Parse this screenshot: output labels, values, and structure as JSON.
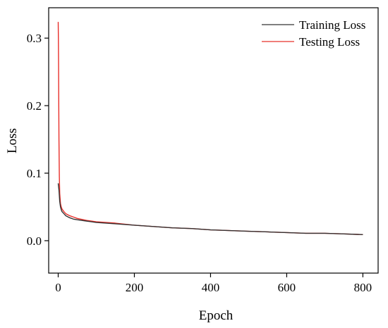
{
  "chart_data": {
    "type": "line",
    "xlabel": "Epoch",
    "ylabel": "Loss",
    "xlim": [
      -25,
      840
    ],
    "ylim": [
      -0.048,
      0.345
    ],
    "xticks": [
      0,
      200,
      400,
      600,
      800
    ],
    "xtick_labels": [
      "0",
      "200",
      "400",
      "600",
      "800"
    ],
    "yticks": [
      0.0,
      0.1,
      0.2,
      0.3
    ],
    "ytick_labels": [
      "0.0",
      "0.1",
      "0.2",
      "0.3"
    ],
    "grid": false,
    "legend_position": "top-right",
    "series": [
      {
        "name": "Training Loss",
        "color": "#333333",
        "points": [
          [
            0,
            0.085
          ],
          [
            2,
            0.075
          ],
          [
            4,
            0.058
          ],
          [
            6,
            0.05
          ],
          [
            8,
            0.046
          ],
          [
            10,
            0.043
          ],
          [
            15,
            0.04
          ],
          [
            20,
            0.037
          ],
          [
            30,
            0.034
          ],
          [
            40,
            0.032
          ],
          [
            50,
            0.031
          ],
          [
            75,
            0.029
          ],
          [
            100,
            0.027
          ],
          [
            150,
            0.025
          ],
          [
            200,
            0.023
          ],
          [
            250,
            0.021
          ],
          [
            300,
            0.019
          ],
          [
            350,
            0.018
          ],
          [
            400,
            0.016
          ],
          [
            450,
            0.015
          ],
          [
            500,
            0.014
          ],
          [
            550,
            0.013
          ],
          [
            600,
            0.012
          ],
          [
            650,
            0.011
          ],
          [
            700,
            0.011
          ],
          [
            750,
            0.01
          ],
          [
            800,
            0.009
          ]
        ]
      },
      {
        "name": "Testing Loss",
        "color": "#e8302b",
        "points": [
          [
            0,
            0.324
          ],
          [
            0.5,
            0.3
          ],
          [
            1,
            0.26
          ],
          [
            1.5,
            0.2
          ],
          [
            2,
            0.15
          ],
          [
            3,
            0.095
          ],
          [
            4,
            0.07
          ],
          [
            6,
            0.055
          ],
          [
            8,
            0.05
          ],
          [
            10,
            0.047
          ],
          [
            15,
            0.043
          ],
          [
            20,
            0.04
          ],
          [
            30,
            0.037
          ],
          [
            40,
            0.035
          ],
          [
            50,
            0.033
          ],
          [
            75,
            0.03
          ],
          [
            100,
            0.028
          ],
          [
            150,
            0.026
          ],
          [
            200,
            0.023
          ],
          [
            250,
            0.021
          ],
          [
            300,
            0.019
          ],
          [
            350,
            0.018
          ],
          [
            400,
            0.016
          ],
          [
            450,
            0.015
          ],
          [
            500,
            0.014
          ],
          [
            550,
            0.013
          ],
          [
            600,
            0.012
          ],
          [
            650,
            0.011
          ],
          [
            700,
            0.011
          ],
          [
            750,
            0.01
          ],
          [
            800,
            0.009
          ]
        ]
      }
    ]
  }
}
